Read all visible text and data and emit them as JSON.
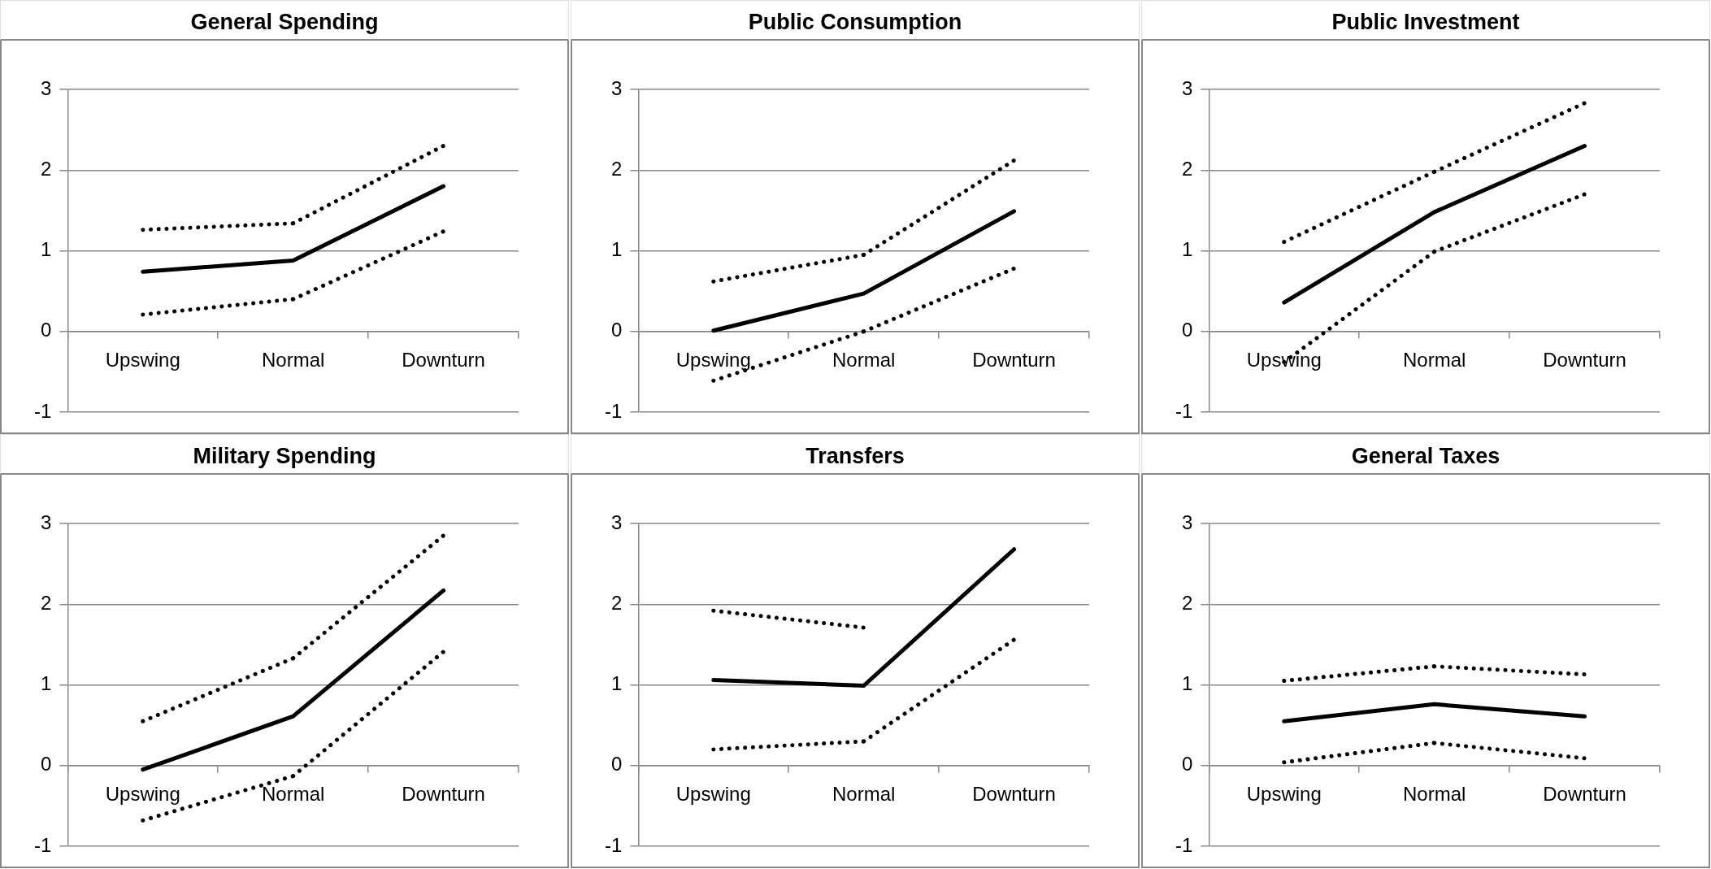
{
  "chart_data": [
    {
      "type": "line",
      "title": "General Spending",
      "categories": [
        "Upswing",
        "Normal",
        "Downturn"
      ],
      "ylim": [
        -1,
        3
      ],
      "yticks": [
        -1,
        0,
        1,
        2,
        3
      ],
      "grid": "y",
      "legend": false,
      "marker": "none",
      "series": [
        {
          "color": "#000000",
          "line_style": "dotted",
          "values": [
            1.26,
            1.34,
            2.3
          ]
        },
        {
          "color": "#000000",
          "line_style": "solid",
          "values": [
            0.74,
            0.88,
            1.8
          ]
        },
        {
          "color": "#000000",
          "line_style": "dotted",
          "values": [
            0.21,
            0.4,
            1.24
          ]
        }
      ]
    },
    {
      "type": "line",
      "title": "Public Consumption",
      "categories": [
        "Upswing",
        "Normal",
        "Downturn"
      ],
      "ylim": [
        -1,
        3
      ],
      "yticks": [
        -1,
        0,
        1,
        2,
        3
      ],
      "grid": "y",
      "legend": false,
      "marker": "none",
      "series": [
        {
          "color": "#000000",
          "line_style": "dotted",
          "values": [
            0.62,
            0.95,
            2.12
          ]
        },
        {
          "color": "#000000",
          "line_style": "solid",
          "values": [
            0.01,
            0.47,
            1.49
          ]
        },
        {
          "color": "#000000",
          "line_style": "dotted",
          "values": [
            -0.61,
            0.0,
            0.78
          ]
        }
      ]
    },
    {
      "type": "line",
      "title": "Public Investment",
      "categories": [
        "Upswing",
        "Normal",
        "Downturn"
      ],
      "ylim": [
        -1,
        3
      ],
      "yticks": [
        -1,
        0,
        1,
        2,
        3
      ],
      "grid": "y",
      "legend": false,
      "marker": "none",
      "series": [
        {
          "color": "#000000",
          "line_style": "dotted",
          "values": [
            1.11,
            1.98,
            2.83
          ]
        },
        {
          "color": "#000000",
          "line_style": "solid",
          "values": [
            0.36,
            1.48,
            2.3
          ]
        },
        {
          "color": "#000000",
          "line_style": "dotted",
          "values": [
            -0.38,
            0.99,
            1.7
          ]
        }
      ]
    },
    {
      "type": "line",
      "title": "Military Spending",
      "categories": [
        "Upswing",
        "Normal",
        "Downturn"
      ],
      "ylim": [
        -1,
        3
      ],
      "yticks": [
        -1,
        0,
        1,
        2,
        3
      ],
      "grid": "y",
      "legend": false,
      "marker": "none",
      "series": [
        {
          "color": "#000000",
          "line_style": "dotted",
          "values": [
            0.55,
            1.33,
            2.85
          ]
        },
        {
          "color": "#000000",
          "line_style": "solid",
          "values": [
            -0.05,
            0.61,
            2.17
          ]
        },
        {
          "color": "#000000",
          "line_style": "dotted",
          "values": [
            -0.68,
            -0.13,
            1.41
          ]
        }
      ]
    },
    {
      "type": "line",
      "title": "Transfers",
      "categories": [
        "Upswing",
        "Normal",
        "Downturn"
      ],
      "ylim": [
        -1,
        3
      ],
      "yticks": [
        -1,
        0,
        1,
        2,
        3
      ],
      "grid": "y",
      "legend": false,
      "marker": "none",
      "series": [
        {
          "color": "#000000",
          "line_style": "dotted",
          "values": [
            1.92,
            1.71,
            null
          ]
        },
        {
          "color": "#000000",
          "line_style": "solid",
          "values": [
            1.06,
            0.99,
            2.68
          ]
        },
        {
          "color": "#000000",
          "line_style": "dotted",
          "values": [
            0.2,
            0.3,
            1.56
          ]
        }
      ]
    },
    {
      "type": "line",
      "title": "General Taxes",
      "categories": [
        "Upswing",
        "Normal",
        "Downturn"
      ],
      "ylim": [
        -1,
        3
      ],
      "yticks": [
        -1,
        0,
        1,
        2,
        3
      ],
      "grid": "y",
      "legend": false,
      "marker": "none",
      "series": [
        {
          "color": "#000000",
          "line_style": "dotted",
          "values": [
            1.05,
            1.23,
            1.13
          ]
        },
        {
          "color": "#000000",
          "line_style": "solid",
          "values": [
            0.55,
            0.76,
            0.61
          ]
        },
        {
          "color": "#000000",
          "line_style": "dotted",
          "values": [
            0.04,
            0.28,
            0.09
          ]
        }
      ]
    }
  ]
}
